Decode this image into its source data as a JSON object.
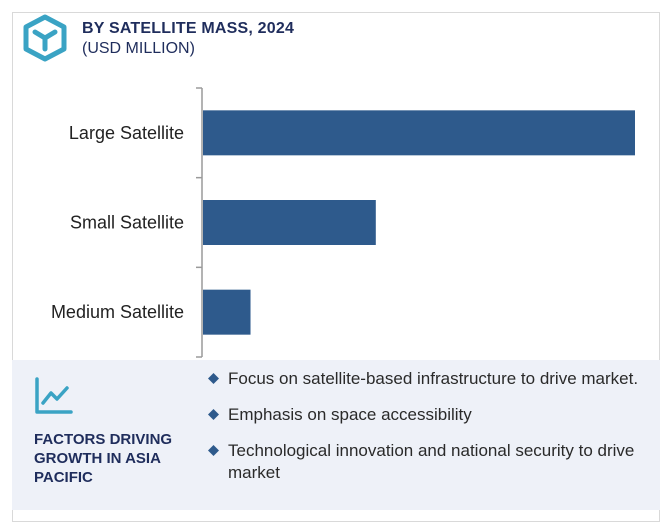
{
  "header": {
    "title": "BY SATELLITE MASS, 2024",
    "subtitle": "(USD MILLION)"
  },
  "colors": {
    "bar": "#2e5a8c",
    "accent": "#3aa3c4",
    "title": "#1f2d5c",
    "panel_bg": "#eef1f8",
    "axis": "#9a9a9a"
  },
  "chart_data": {
    "type": "bar",
    "orientation": "horizontal",
    "title": "BY SATELLITE MASS, 2024",
    "subtitle": "(USD MILLION)",
    "categories": [
      "Large Satellite",
      "Small Satellite",
      "Medium Satellite"
    ],
    "values": [
      100,
      40,
      11
    ],
    "xlim": [
      0,
      100
    ],
    "grid": false,
    "legend": "none",
    "xlabel": "",
    "ylabel": ""
  },
  "factors": {
    "icon": "line-chart-icon",
    "title": "FACTORS DRIVING GROWTH IN ASIA PACIFIC",
    "items": [
      "Focus on satellite-based infrastructure to drive market.",
      "Emphasis on space accessibility",
      "Technological innovation and national security to drive market"
    ]
  }
}
